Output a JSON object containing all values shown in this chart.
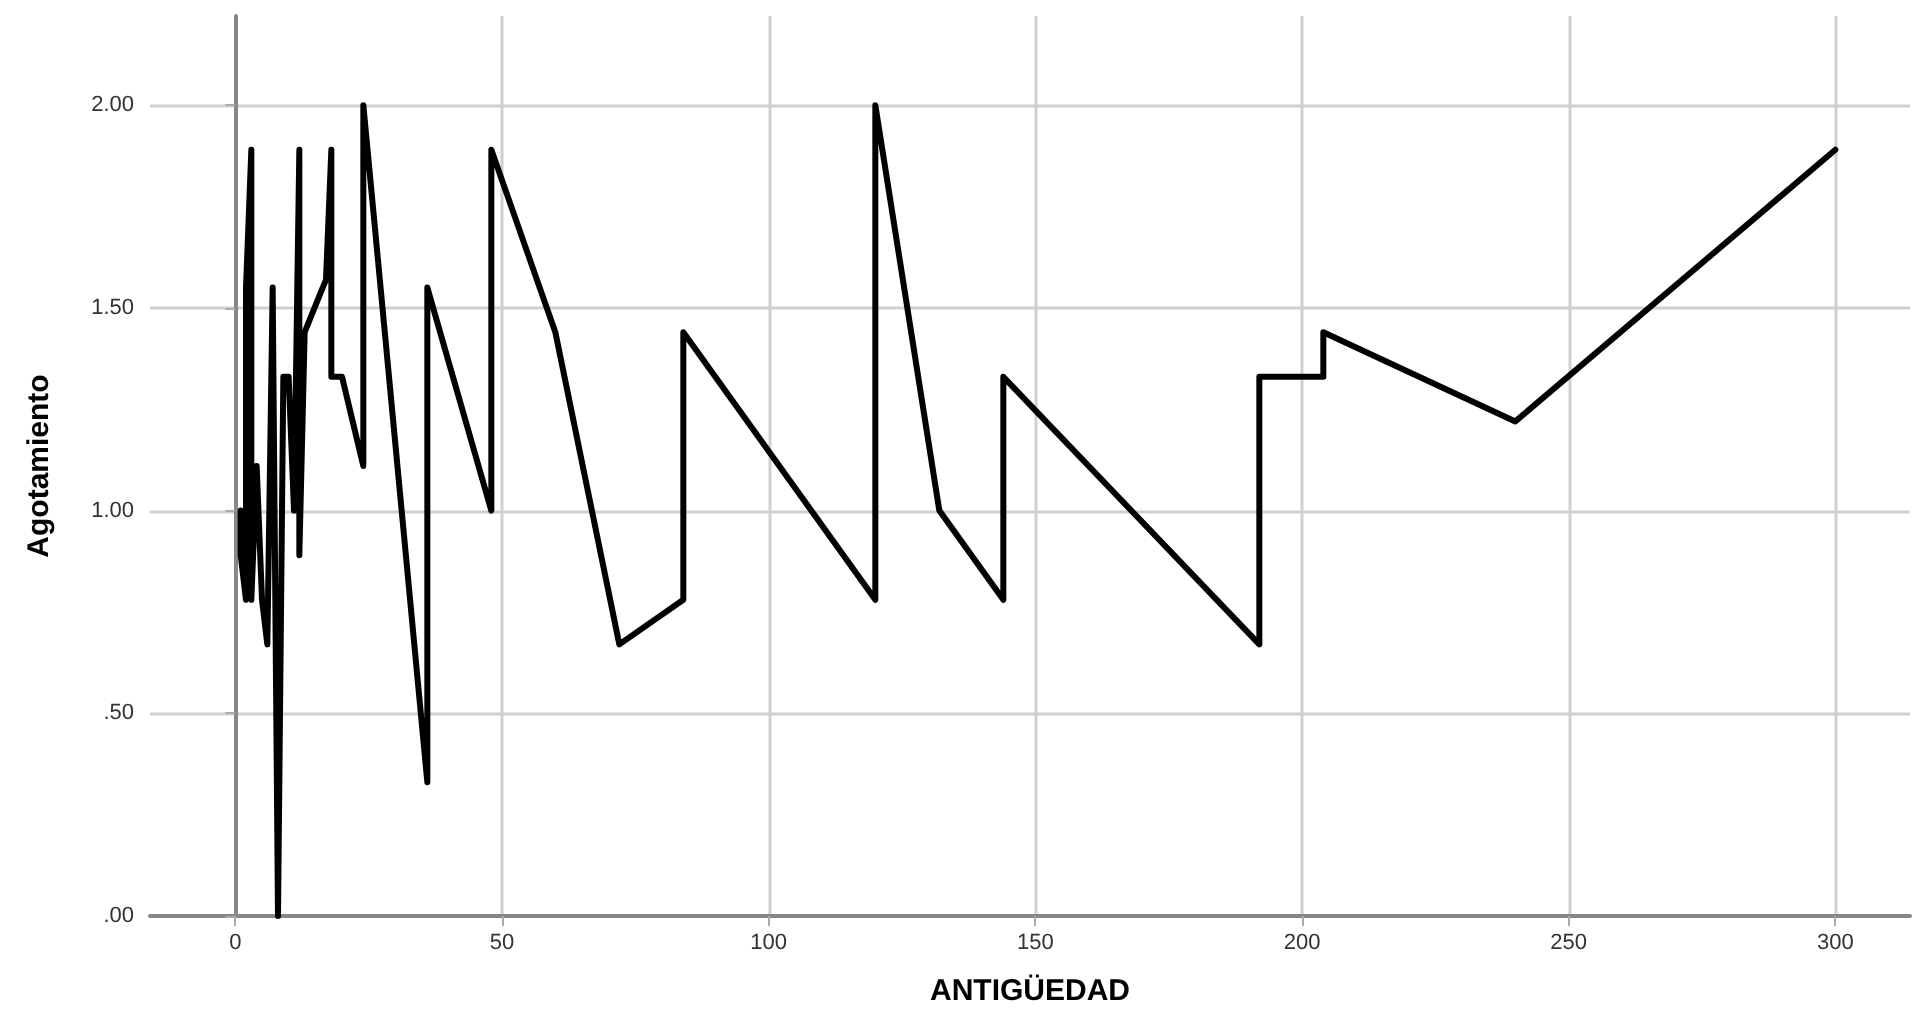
{
  "chart_data": {
    "type": "line",
    "xlabel": "ANTIGÜEDAD",
    "ylabel": "Agotamiento",
    "x": [
      1,
      1,
      2,
      2,
      3,
      3,
      4,
      5,
      6,
      7,
      8,
      9,
      10,
      11,
      12,
      12,
      13,
      17,
      18,
      18,
      20,
      24,
      24,
      36,
      36,
      48,
      48,
      60,
      72,
      84,
      84,
      120,
      120,
      132,
      144,
      144,
      192,
      192,
      204,
      204,
      240,
      300
    ],
    "series": [
      {
        "color": "#000000",
        "values": [
          1.0,
          0.89,
          0.78,
          1.55,
          1.89,
          0.78,
          1.11,
          0.78,
          0.67,
          1.55,
          0.0,
          1.33,
          1.33,
          1.0,
          1.89,
          0.89,
          1.44,
          1.57,
          1.89,
          1.33,
          1.33,
          1.11,
          2.0,
          0.33,
          1.55,
          1.0,
          1.89,
          1.44,
          0.67,
          0.78,
          1.44,
          0.78,
          2.0,
          1.0,
          0.78,
          1.33,
          0.67,
          1.33,
          1.33,
          1.44,
          1.22,
          1.89
        ]
      }
    ],
    "xlim": [
      -16,
      314
    ],
    "xticks": [
      0,
      50,
      100,
      150,
      200,
      250,
      300
    ],
    "ylim": [
      0,
      2.22
    ],
    "yticks": [
      {
        "value": 0,
        "label": ".00"
      },
      {
        "value": 0.5,
        "label": ".50"
      },
      {
        "value": 1,
        "label": "1.00"
      },
      {
        "value": 1.5,
        "label": "1.50"
      },
      {
        "value": 2,
        "label": "2.00"
      }
    ],
    "grid": true,
    "marker": "none",
    "line_style": "solid"
  }
}
